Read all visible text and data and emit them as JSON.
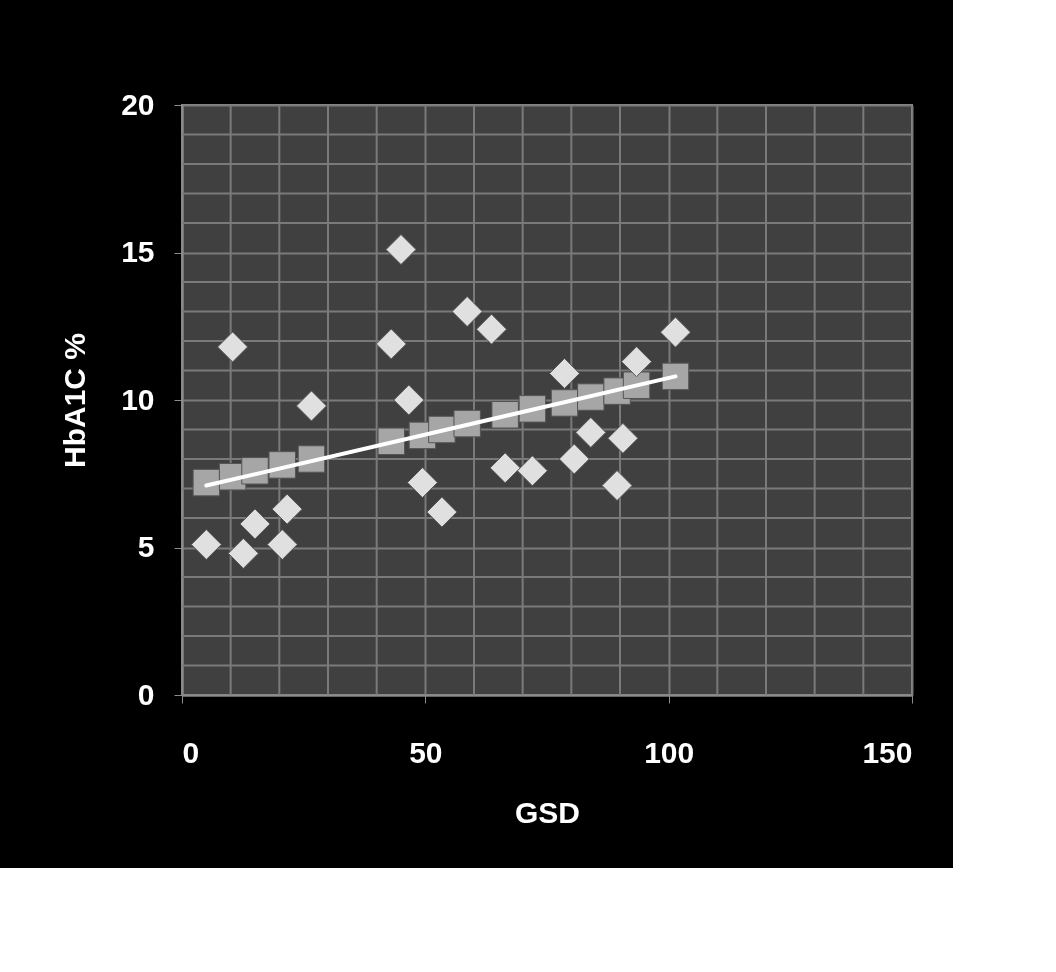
{
  "chart_data": {
    "type": "scatter",
    "xlabel": "GSD",
    "ylabel": "HbA1C %",
    "xlim": [
      0,
      150
    ],
    "ylim": [
      0,
      20
    ],
    "xticks": [
      0,
      {
        "value": 10,
        "label": null
      },
      {
        "value": 20,
        "label": null
      },
      {
        "value": 30,
        "label": null
      },
      {
        "value": 40,
        "label": null
      },
      50,
      {
        "value": 60,
        "label": null
      },
      {
        "value": 70,
        "label": null
      },
      {
        "value": 80,
        "label": null
      },
      {
        "value": 90,
        "label": null
      },
      100,
      {
        "value": 110,
        "label": null
      },
      {
        "value": 120,
        "label": null
      },
      {
        "value": 130,
        "label": null
      },
      {
        "value": 140,
        "label": null
      },
      150
    ],
    "yticks": [
      0,
      {
        "value": 1,
        "label": null
      },
      {
        "value": 2,
        "label": null
      },
      {
        "value": 3,
        "label": null
      },
      {
        "value": 4,
        "label": null
      },
      5,
      {
        "value": 6,
        "label": null
      },
      {
        "value": 7,
        "label": null
      },
      {
        "value": 8,
        "label": null
      },
      {
        "value": 9,
        "label": null
      },
      10,
      {
        "value": 11,
        "label": null
      },
      {
        "value": 12,
        "label": null
      },
      {
        "value": 13,
        "label": null
      },
      {
        "value": 14,
        "label": null
      },
      15,
      {
        "value": 16,
        "label": null
      },
      {
        "value": 17,
        "label": null
      },
      {
        "value": 18,
        "label": null
      },
      {
        "value": 19,
        "label": null
      },
      20
    ],
    "grid": true,
    "series": [
      {
        "marker": "square",
        "color": "#a6a6a6",
        "x": [
          5,
          10.4,
          15,
          20.6,
          26.6,
          43,
          49.4,
          53.4,
          58.6,
          66.4,
          72,
          78.6,
          84,
          89.4,
          93.4,
          101.4
        ],
        "values": [
          7.2,
          7.4,
          7.6,
          7.8,
          8.0,
          8.6,
          8.8,
          9.0,
          9.2,
          9.5,
          9.7,
          9.9,
          10.1,
          10.3,
          10.5,
          10.8
        ]
      },
      {
        "marker": "diamond",
        "color": "#e0e0e0",
        "x": [
          5,
          10.4,
          12.6,
          15,
          20.6,
          21.6,
          26.6,
          43,
          45,
          46.6,
          49.4,
          53.4,
          58.6,
          63.6,
          66.4,
          72,
          78.6,
          80.6,
          84,
          89.4,
          90.6,
          93.4,
          101.4
        ],
        "values": [
          5.1,
          11.8,
          4.8,
          5.8,
          5.1,
          6.3,
          9.8,
          11.9,
          15.1,
          10.0,
          7.2,
          6.2,
          13.0,
          12.4,
          7.7,
          7.6,
          10.9,
          8.0,
          8.9,
          7.1,
          8.7,
          11.3,
          12.3
        ]
      },
      {
        "type": "line",
        "line_style": "solid",
        "marker": "none",
        "color": "#ffffff",
        "x": [
          5,
          101.4
        ],
        "values": [
          7.1,
          10.8
        ]
      }
    ]
  }
}
